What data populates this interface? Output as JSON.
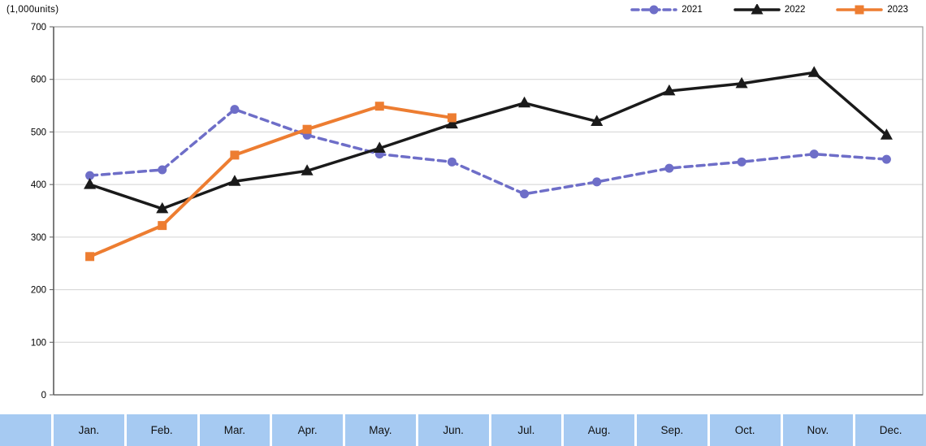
{
  "chart_data": {
    "type": "line",
    "title": "",
    "ylabel": "(1,000units)",
    "xlabel": "",
    "ylim": [
      0,
      700
    ],
    "yticks": [
      0,
      100,
      200,
      300,
      400,
      500,
      600,
      700
    ],
    "grid": true,
    "legend_position": "top-right",
    "categories": [
      "Jan.",
      "Feb.",
      "Mar.",
      "Apr.",
      "May.",
      "Jun.",
      "Jul.",
      "Aug.",
      "Sep.",
      "Oct.",
      "Nov.",
      "Dec."
    ],
    "series": [
      {
        "name": "2021",
        "color": "#6E6EC8",
        "line": "dashed",
        "marker": "circle",
        "values": [
          417,
          428,
          543,
          494,
          458,
          443,
          382,
          405,
          431,
          443,
          458,
          448
        ]
      },
      {
        "name": "2022",
        "color": "#1A1A1A",
        "line": "solid",
        "marker": "triangle",
        "values": [
          400,
          354,
          406,
          426,
          469,
          515,
          555,
          520,
          578,
          592,
          613,
          494
        ]
      },
      {
        "name": "2023",
        "color": "#ED7D31",
        "line": "solid",
        "marker": "square",
        "values": [
          263,
          322,
          456,
          505,
          549,
          527,
          null,
          null,
          null,
          null,
          null,
          null
        ]
      }
    ]
  },
  "colors": {
    "gridline": "#D2D2D2",
    "axis": "#595959",
    "plot_border": "#9B9B9B",
    "tick_text": "#000000",
    "table_cell_bg": "#A6CAF2"
  }
}
